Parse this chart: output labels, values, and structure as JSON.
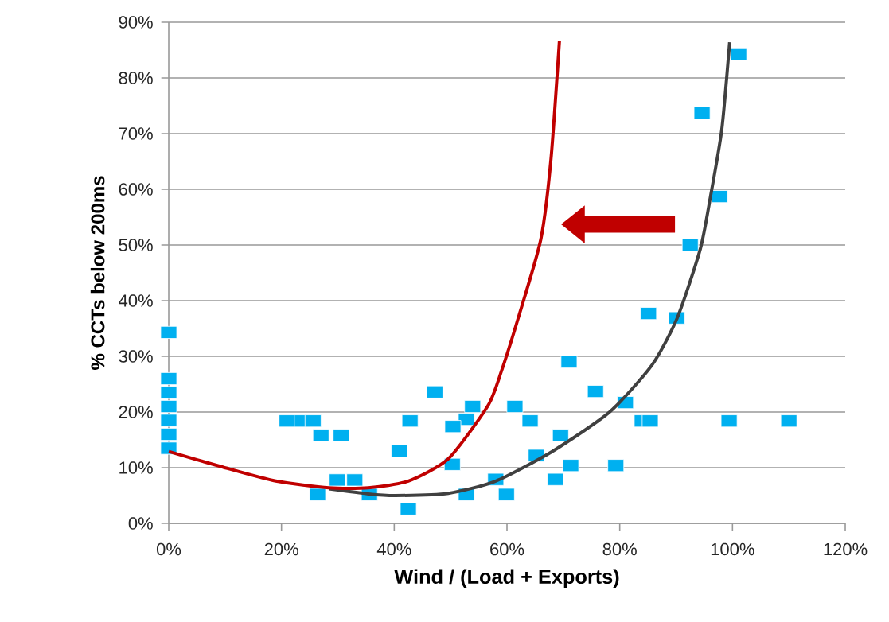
{
  "chart_data": {
    "type": "scatter",
    "xlabel": "Wind / (Load + Exports)",
    "ylabel": "% CCTs below 200ms",
    "xlim": [
      0,
      120
    ],
    "ylim": [
      0,
      90
    ],
    "xticks": [
      {
        "value": 0,
        "label": "0%"
      },
      {
        "value": 20,
        "label": "20%"
      },
      {
        "value": 40,
        "label": "40%"
      },
      {
        "value": 60,
        "label": "60%"
      },
      {
        "value": 80,
        "label": "80%"
      },
      {
        "value": 100,
        "label": "100%"
      },
      {
        "value": 120,
        "label": "120%"
      }
    ],
    "yticks": [
      {
        "value": 0,
        "label": "0%"
      },
      {
        "value": 10,
        "label": "10%"
      },
      {
        "value": 20,
        "label": "20%"
      },
      {
        "value": 30,
        "label": "30%"
      },
      {
        "value": 40,
        "label": "40%"
      },
      {
        "value": 50,
        "label": "50%"
      },
      {
        "value": 60,
        "label": "60%"
      },
      {
        "value": 70,
        "label": "70%"
      },
      {
        "value": 80,
        "label": "80%"
      },
      {
        "value": 90,
        "label": "90%"
      }
    ],
    "grid": "y",
    "series": [
      {
        "color": "#00b0f0",
        "marker": "square",
        "x": [
          0,
          0,
          0,
          0,
          0,
          0,
          0,
          21,
          23.7,
          25.6,
          27,
          30.6,
          40.9,
          47.2,
          53.9,
          52.8,
          50.4,
          42.8,
          50.3,
          29.9,
          33,
          26.4,
          35.6,
          42.5,
          52.8,
          58,
          59.9,
          61.4,
          64.1,
          65.2,
          68.6,
          69.5,
          71.3,
          71,
          75.7,
          81,
          79.3,
          84,
          85.4,
          99.4,
          110,
          101.1,
          94.6,
          97.7,
          92.5,
          85.1,
          90.1
        ],
        "values": [
          34.3,
          26,
          23.5,
          21,
          18.5,
          16,
          13.5,
          18.4,
          18.4,
          18.4,
          15.8,
          15.8,
          13,
          23.6,
          21,
          18.7,
          17.4,
          18.4,
          10.6,
          7.8,
          7.8,
          5.2,
          5.2,
          2.6,
          5.2,
          7.9,
          5.2,
          21,
          18.4,
          12.2,
          7.9,
          15.8,
          10.4,
          29,
          23.7,
          21.7,
          10.4,
          18.4,
          18.4,
          18.4,
          18.4,
          84.3,
          73.7,
          58.7,
          50,
          37.7,
          36.9
        ]
      },
      {
        "type": "line",
        "color": "#404040",
        "line_style": "solid",
        "x": [
          28.4,
          35.4,
          40.2,
          49.6,
          58,
          68,
          78.2,
          85.7,
          90.2,
          94.3,
          96.1,
          98.1,
          99.5
        ],
        "values": [
          6.2,
          5.3,
          5.0,
          5.4,
          7.6,
          12.9,
          20,
          28.4,
          36.9,
          49.3,
          58.7,
          70.7,
          86.4
        ]
      },
      {
        "type": "line",
        "color": "#c00000",
        "line_style": "solid",
        "x": [
          0,
          9.6,
          19,
          28.4,
          35.4,
          42.5,
          49.6,
          56.6,
          59,
          62,
          66,
          67.8,
          69.3
        ],
        "values": [
          12.9,
          10.1,
          7.6,
          6.4,
          6.4,
          7.6,
          11.6,
          21.1,
          27.3,
          36.9,
          51,
          65.4,
          86.6
        ]
      }
    ]
  }
}
